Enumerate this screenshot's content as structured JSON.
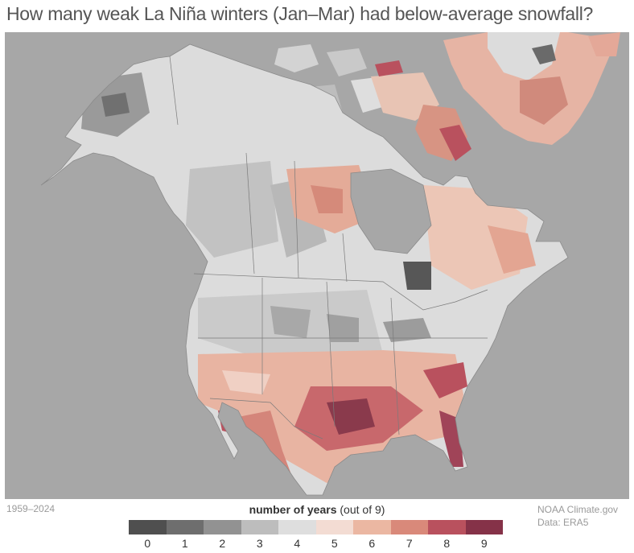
{
  "title": "How many weak La Niña winters (Jan–Mar) had below-average snowfall?",
  "period": "1959–2024",
  "legend": {
    "title_bold": "number of years",
    "title_suffix": " (out of 9)",
    "classes": [
      {
        "label": "0",
        "color": "#4f4f4f"
      },
      {
        "label": "1",
        "color": "#6e6e6e"
      },
      {
        "label": "2",
        "color": "#929292"
      },
      {
        "label": "3",
        "color": "#bdbdbd"
      },
      {
        "label": "4",
        "color": "#dedede"
      },
      {
        "label": "5",
        "color": "#f3dcd3"
      },
      {
        "label": "6",
        "color": "#ebb7a2"
      },
      {
        "label": "7",
        "color": "#d9897a"
      },
      {
        "label": "8",
        "color": "#b9515e"
      },
      {
        "label": "9",
        "color": "#853248"
      }
    ]
  },
  "credit": {
    "line1": "NOAA Climate.gov",
    "line2": "Data: ERA5"
  },
  "colors": {
    "ocean": "#a7a7a7",
    "title": "#555555",
    "muted_text": "#9a9a9a"
  }
}
